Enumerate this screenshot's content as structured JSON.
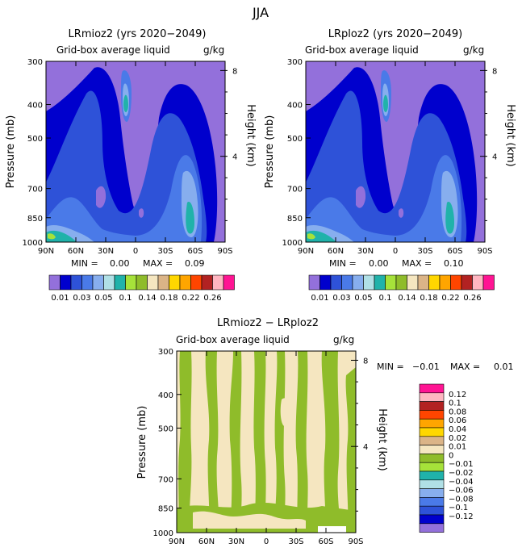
{
  "page_title": "JJA",
  "colors": {
    "levels": [
      "#9370db",
      "#0000cd",
      "#2e52d8",
      "#4a7ae8",
      "#87aeee",
      "#b0e0e6",
      "#20b2aa",
      "#a6e23a",
      "#8fbc2a",
      "#f5e6c0",
      "#dbb487",
      "#ffd700",
      "#ffa500",
      "#ff4500",
      "#b22222",
      "#ffb6c1",
      "#ff1493"
    ],
    "diff_levels": [
      "#9370db",
      "#0000cd",
      "#2e52d8",
      "#4a7ae8",
      "#87aeee",
      "#b0e0e6",
      "#20b2aa",
      "#a6e23a",
      "#8fbc2a",
      "#f5e6c0",
      "#dbb487",
      "#ffd700",
      "#ffa500",
      "#ff4500",
      "#b22222",
      "#ffb6c1",
      "#ff1493"
    ]
  },
  "chart_data": [
    {
      "type": "heatmap",
      "title": "LRmioz2 (yrs 2020−2049)",
      "subtitle": "Grid-box average liquid",
      "units": "g/kg",
      "xlabel": "",
      "ylabel": "Pressure (mb)",
      "y2label": "Height (km)",
      "x_ticks": [
        "90N",
        "60N",
        "30N",
        "0",
        "30S",
        "60S",
        "90S"
      ],
      "y_ticks": [
        "300",
        "400",
        "500",
        "700",
        "850",
        "1000"
      ],
      "y2_ticks": [
        "8",
        "4"
      ],
      "stats": {
        "min_label": "MIN =",
        "min": "0.00",
        "max_label": "MAX =",
        "max": "0.09"
      },
      "colorbar_labels": [
        "0.01",
        "0.03",
        "0.05",
        "0.1",
        "0.14",
        "0.18",
        "0.22",
        "0.26"
      ]
    },
    {
      "type": "heatmap",
      "title": "LRploz2 (yrs 2020−2049)",
      "subtitle": "Grid-box average liquid",
      "units": "g/kg",
      "xlabel": "",
      "ylabel": "Pressure (mb)",
      "y2label": "Height (km)",
      "x_ticks": [
        "90N",
        "60N",
        "30N",
        "0",
        "30S",
        "60S",
        "90S"
      ],
      "y_ticks": [
        "300",
        "400",
        "500",
        "700",
        "850",
        "1000"
      ],
      "y2_ticks": [
        "8",
        "4"
      ],
      "stats": {
        "min_label": "MIN =",
        "min": "0.00",
        "max_label": "MAX =",
        "max": "0.10"
      },
      "colorbar_labels": [
        "0.01",
        "0.03",
        "0.05",
        "0.1",
        "0.14",
        "0.18",
        "0.22",
        "0.26"
      ]
    },
    {
      "type": "heatmap",
      "title": "LRmioz2 − LRploz2",
      "subtitle": "Grid-box average liquid",
      "units": "g/kg",
      "xlabel": "",
      "ylabel": "Pressure (mb)",
      "y2label": "Height (km)",
      "x_ticks": [
        "90N",
        "60N",
        "30N",
        "0",
        "30S",
        "60S",
        "90S"
      ],
      "y_ticks": [
        "300",
        "400",
        "500",
        "700",
        "850",
        "1000"
      ],
      "y2_ticks": [
        "8",
        "4"
      ],
      "stats": {
        "min_label": "MIN =",
        "min": "−0.01",
        "max_label": "MAX =",
        "max": "0.01"
      },
      "colorbar_labels": [
        "0.12",
        "0.1",
        "0.08",
        "0.06",
        "0.04",
        "0.02",
        "0.01",
        "0",
        "−0.01",
        "−0.02",
        "−0.04",
        "−0.06",
        "−0.08",
        "−0.1",
        "−0.12"
      ]
    }
  ]
}
